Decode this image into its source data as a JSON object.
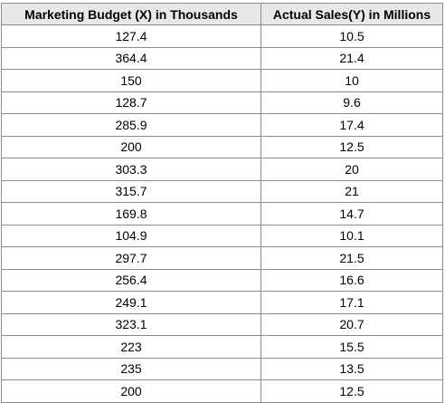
{
  "table": {
    "headers": [
      "Marketing Budget (X) in Thousands",
      "Actual Sales(Y) in Millions"
    ],
    "rows": [
      [
        "127.4",
        "10.5"
      ],
      [
        "364.4",
        "21.4"
      ],
      [
        "150",
        "10"
      ],
      [
        "128.7",
        "9.6"
      ],
      [
        "285.9",
        "17.4"
      ],
      [
        "200",
        "12.5"
      ],
      [
        "303.3",
        "20"
      ],
      [
        "315.7",
        "21"
      ],
      [
        "169.8",
        "14.7"
      ],
      [
        "104.9",
        "10.1"
      ],
      [
        "297.7",
        "21.5"
      ],
      [
        "256.4",
        "16.6"
      ],
      [
        "249.1",
        "17.1"
      ],
      [
        "323.1",
        "20.7"
      ],
      [
        "223",
        "15.5"
      ],
      [
        "235",
        "13.5"
      ],
      [
        "200",
        "12.5"
      ]
    ]
  }
}
